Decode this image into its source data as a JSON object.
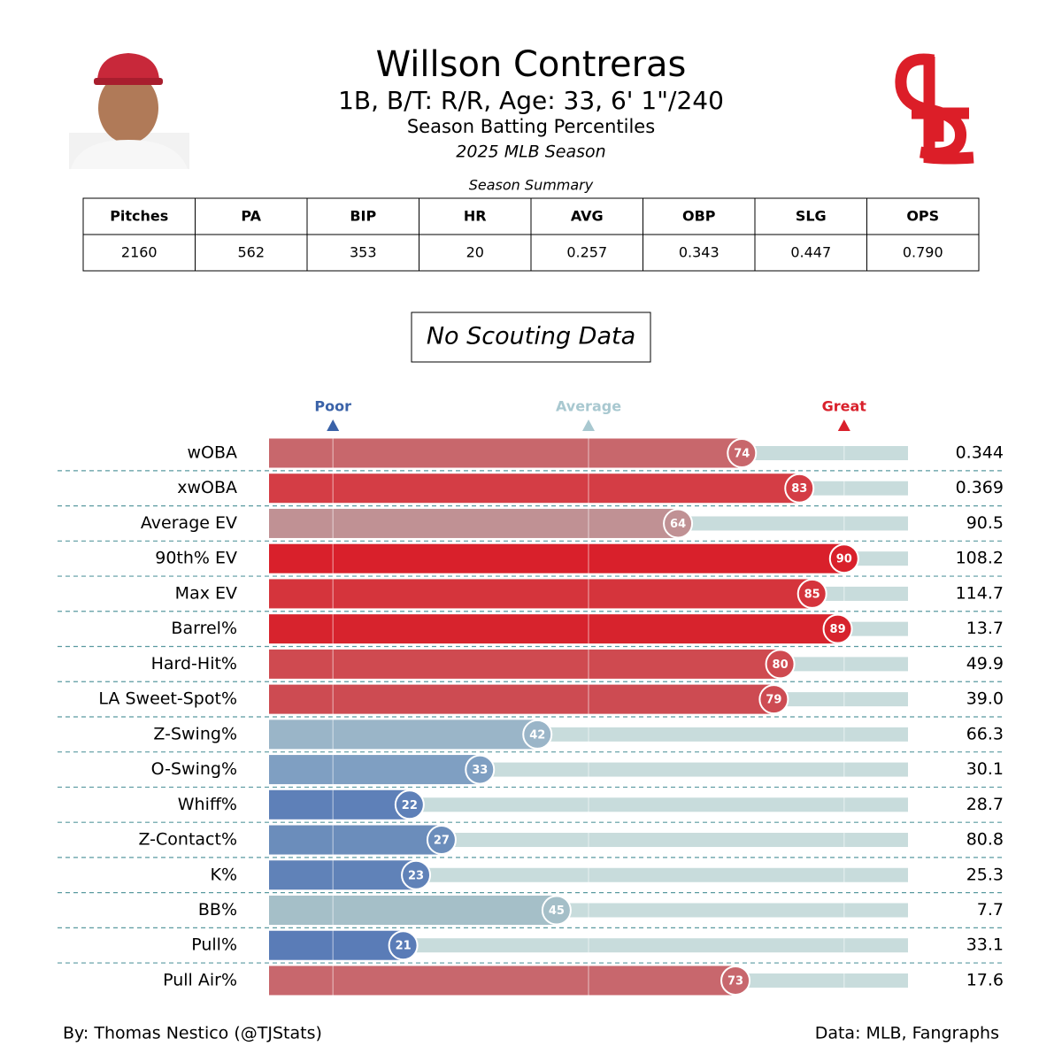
{
  "header": {
    "title": "Willson Contreras",
    "subtitle": "1B, B/T: R/R, Age: 33, 6' 1\"/240",
    "description": "Season Batting Percentiles",
    "season": "2025 MLB Season"
  },
  "summary": {
    "title": "Season Summary",
    "columns": [
      "Pitches",
      "PA",
      "BIP",
      "HR",
      "AVG",
      "OBP",
      "SLG",
      "OPS"
    ],
    "rows": [
      [
        "2160",
        "562",
        "353",
        "20",
        "0.257",
        "0.343",
        "0.447",
        "0.790"
      ]
    ]
  },
  "scouting_note": "No Scouting Data",
  "chart_data": {
    "type": "percentile-bar",
    "categories": [
      "wOBA",
      "xwOBA",
      "Average EV",
      "90th% EV",
      "Max EV",
      "Barrel%",
      "Hard-Hit%",
      "LA Sweet-Spot%",
      "Z-Swing%",
      "O-Swing%",
      "Whiff%",
      "Z-Contact%",
      "K%",
      "BB%",
      "Pull%",
      "Pull Air%"
    ],
    "values": [
      74,
      83,
      64,
      90,
      85,
      89,
      80,
      79,
      42,
      33,
      22,
      27,
      23,
      45,
      21,
      73
    ],
    "colors": [
      "#c8676c",
      "#d43d45",
      "#c09194",
      "#d9202b",
      "#d5343c",
      "#d7232d",
      "#cf4a50",
      "#cd4b52",
      "#9ab5c8",
      "#7f9fc2",
      "#5e80b8",
      "#6b8dbb",
      "#6082b8",
      "#a5bfc8",
      "#5a7cb7",
      "#c8676d"
    ],
    "stats": [
      "0.344",
      "0.369",
      "90.5",
      "108.2",
      "114.7",
      "13.7",
      "49.9",
      "39.0",
      "66.3",
      "30.1",
      "28.7",
      "80.8",
      "25.3",
      "7.7",
      "33.1",
      "17.6"
    ],
    "xlim": [
      0,
      100
    ],
    "xticks": [
      {
        "value": 10,
        "label": "Poor"
      },
      {
        "value": 50,
        "label": "Average"
      },
      {
        "value": 90,
        "label": "Great"
      }
    ],
    "xtick_colors": [
      "#3a62a8",
      "#a8c8d0",
      "#d9202b"
    ],
    "track_color": "#c8dcdc"
  },
  "footer": {
    "left": "By: Thomas Nestico (@TJStats)",
    "right": "Data: MLB, Fangraphs"
  }
}
